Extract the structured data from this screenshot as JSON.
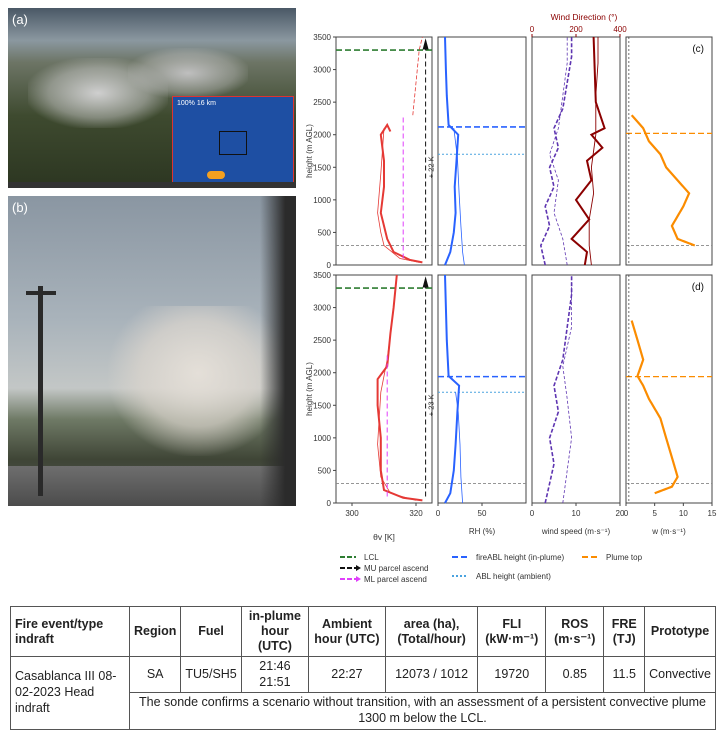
{
  "photos": {
    "a_label": "(a)",
    "b_label": "(b)",
    "c_label": "(c)",
    "d_label": "(d)",
    "inset_text": "100% 16 km"
  },
  "axes": {
    "height_label": "height (m AGL)",
    "theta_label": "θv [K]",
    "rh_label": "RH (%)",
    "ws_label": "wind speed (m·s⁻¹)",
    "wd_label": "Wind Direction (°)",
    "w_label": "w (m·s⁻¹)",
    "c_annotation": "+ 22 K",
    "d_annotation": "+ 23 K"
  },
  "legend": {
    "lcl": "LCL",
    "mu": "MU parcel ascend",
    "ml": "ML parcel ascend",
    "fire_abl": "fireABL height (in-plume)",
    "abl": "ABL height (ambient)",
    "plume_top": "Plume top"
  },
  "colors": {
    "lcl": "#2e7d32",
    "theta": "#e53935",
    "ml": "#e040fb",
    "rh": "#2962ff",
    "abl": "#4aa3df",
    "wind_speed": "#5e35b1",
    "wind_dir": "#8b0000",
    "w": "#fb8c00"
  },
  "chart_data": [
    {
      "type": "line",
      "panel": "c",
      "ylim": [
        0,
        3500
      ],
      "yticks": [
        0,
        500,
        1000,
        1500,
        2000,
        2500,
        3000,
        3500
      ],
      "theta_xlim": [
        295,
        325
      ],
      "theta_xticks": [
        300,
        320
      ],
      "rh_xlim": [
        0,
        100
      ],
      "rh_xticks": [
        0,
        50
      ],
      "ws_xlim": [
        0,
        20
      ],
      "ws_xticks": [
        0,
        10,
        20
      ],
      "wd_xlim": [
        0,
        400
      ],
      "wd_xticks": [
        0,
        200,
        400
      ],
      "w_xlim": [
        0,
        15
      ],
      "w_xticks": [
        0,
        5,
        10,
        15
      ],
      "lcl_height": 3300,
      "fire_abl_height": 2120,
      "abl_height": 1700,
      "plume_top": 2020,
      "surface_line": 300,
      "annotation": "+ 22 K",
      "theta_inplume": [
        [
          322,
          40
        ],
        [
          318,
          80
        ],
        [
          313,
          200
        ],
        [
          311,
          400
        ],
        [
          309,
          800
        ],
        [
          310,
          1200
        ],
        [
          310,
          1600
        ],
        [
          309,
          2000
        ],
        [
          311,
          2150
        ],
        [
          312,
          2050
        ]
      ],
      "theta_ambient": [
        [
          321,
          40
        ],
        [
          315,
          100
        ],
        [
          310,
          300
        ],
        [
          309,
          500
        ],
        [
          308,
          800
        ],
        [
          309,
          1400
        ],
        [
          310,
          2100
        ]
      ],
      "theta_upper": [
        [
          319,
          2300
        ],
        [
          320,
          2800
        ],
        [
          321,
          3300
        ],
        [
          322,
          3500
        ]
      ],
      "mu_parcel_x": 323,
      "ml_parcel_x": 316,
      "rh_inplume": [
        [
          8,
          0
        ],
        [
          14,
          200
        ],
        [
          18,
          500
        ],
        [
          20,
          800
        ],
        [
          19,
          1200
        ],
        [
          21,
          1600
        ],
        [
          23,
          2000
        ],
        [
          12,
          2150
        ],
        [
          10,
          2600
        ],
        [
          9,
          3000
        ],
        [
          8,
          3500
        ]
      ],
      "rh_ambient": [
        [
          30,
          0
        ],
        [
          28,
          200
        ],
        [
          26,
          600
        ],
        [
          24,
          1100
        ],
        [
          22,
          1650
        ],
        [
          18,
          2100
        ]
      ],
      "ws_inplume": [
        [
          3,
          0
        ],
        [
          2,
          300
        ],
        [
          4,
          600
        ],
        [
          3,
          900
        ],
        [
          5,
          1200
        ],
        [
          4,
          1500
        ],
        [
          6,
          1800
        ],
        [
          5,
          2100
        ],
        [
          7,
          2400
        ],
        [
          8,
          2800
        ],
        [
          9,
          3200
        ],
        [
          9,
          3500
        ]
      ],
      "ws_ambient": [
        [
          8,
          0
        ],
        [
          7,
          400
        ],
        [
          5,
          800
        ],
        [
          6,
          1300
        ],
        [
          4,
          1700
        ],
        [
          6,
          2100
        ],
        [
          7,
          2600
        ],
        [
          8,
          3100
        ],
        [
          8,
          3500
        ]
      ],
      "wd_inplume": [
        [
          240,
          0
        ],
        [
          250,
          200
        ],
        [
          180,
          400
        ],
        [
          260,
          700
        ],
        [
          200,
          1000
        ],
        [
          270,
          1300
        ],
        [
          250,
          1600
        ],
        [
          320,
          1800
        ],
        [
          270,
          2000
        ],
        [
          330,
          2100
        ],
        [
          290,
          2500
        ],
        [
          285,
          3000
        ],
        [
          280,
          3500
        ]
      ],
      "wd_ambient": [
        [
          270,
          0
        ],
        [
          260,
          300
        ],
        [
          260,
          700
        ],
        [
          280,
          1100
        ],
        [
          270,
          1500
        ],
        [
          290,
          2000
        ],
        [
          290,
          2600
        ],
        [
          300,
          3100
        ],
        [
          300,
          3500
        ]
      ],
      "w_profile": [
        [
          12,
          300
        ],
        [
          9,
          400
        ],
        [
          8,
          600
        ],
        [
          10,
          900
        ],
        [
          11,
          1100
        ],
        [
          9,
          1300
        ],
        [
          7,
          1500
        ],
        [
          6,
          1700
        ],
        [
          4,
          1900
        ],
        [
          3,
          2100
        ],
        [
          2,
          2200
        ],
        [
          1,
          2300
        ]
      ]
    },
    {
      "type": "line",
      "panel": "d",
      "ylim": [
        0,
        3500
      ],
      "yticks": [
        0,
        500,
        1000,
        1500,
        2000,
        2500,
        3000,
        3500
      ],
      "theta_xlim": [
        295,
        325
      ],
      "theta_xticks": [
        300,
        320
      ],
      "rh_xlim": [
        0,
        100
      ],
      "rh_xticks": [
        0,
        50
      ],
      "ws_xlim": [
        0,
        20
      ],
      "ws_xticks": [
        0,
        10,
        20
      ],
      "w_xlim": [
        0,
        15
      ],
      "w_xticks": [
        0,
        5,
        10,
        15
      ],
      "lcl_height": 3300,
      "fire_abl_height": 1940,
      "abl_height": 1700,
      "plume_top": 1940,
      "surface_line": 300,
      "annotation": "+ 23 K",
      "theta_inplume": [
        [
          322,
          40
        ],
        [
          316,
          80
        ],
        [
          310,
          200
        ],
        [
          309,
          500
        ],
        [
          309,
          1000
        ],
        [
          308,
          1500
        ],
        [
          308,
          1900
        ],
        [
          311,
          2100
        ],
        [
          312,
          2600
        ],
        [
          313,
          3000
        ],
        [
          314,
          3500
        ]
      ],
      "theta_ambient": [
        [
          320,
          40
        ],
        [
          312,
          150
        ],
        [
          309,
          400
        ],
        [
          308,
          900
        ],
        [
          309,
          1700
        ],
        [
          311,
          2200
        ],
        [
          313,
          3000
        ]
      ],
      "mu_parcel_x": 323,
      "ml_parcel_x": 311,
      "rh_inplume": [
        [
          8,
          0
        ],
        [
          14,
          150
        ],
        [
          18,
          500
        ],
        [
          20,
          900
        ],
        [
          22,
          1400
        ],
        [
          24,
          1800
        ],
        [
          12,
          1950
        ],
        [
          10,
          2500
        ],
        [
          9,
          3000
        ],
        [
          8,
          3500
        ]
      ],
      "rh_ambient": [
        [
          28,
          0
        ],
        [
          26,
          400
        ],
        [
          25,
          900
        ],
        [
          23,
          1400
        ],
        [
          20,
          1700
        ]
      ],
      "ws_inplume": [
        [
          3,
          0
        ],
        [
          4,
          300
        ],
        [
          5,
          600
        ],
        [
          4,
          1000
        ],
        [
          6,
          1400
        ],
        [
          5,
          1800
        ],
        [
          7,
          2200
        ],
        [
          8,
          2700
        ],
        [
          9,
          3200
        ],
        [
          9,
          3500
        ]
      ],
      "ws_ambient": [
        [
          7,
          0
        ],
        [
          8,
          500
        ],
        [
          9,
          1000
        ],
        [
          8,
          1600
        ],
        [
          7,
          2100
        ],
        [
          9,
          2700
        ],
        [
          9,
          3500
        ]
      ],
      "w_profile": [
        [
          5,
          150
        ],
        [
          8,
          250
        ],
        [
          9,
          400
        ],
        [
          8,
          700
        ],
        [
          7,
          1000
        ],
        [
          6,
          1300
        ],
        [
          4,
          1600
        ],
        [
          3,
          1800
        ],
        [
          2,
          1950
        ],
        [
          3,
          2200
        ],
        [
          2,
          2500
        ],
        [
          1,
          2800
        ]
      ]
    }
  ],
  "table": {
    "headers": [
      "Fire event/type indraft",
      "Region",
      "Fuel",
      "in-plume hour (UTC)",
      "Ambient hour (UTC)",
      "area (ha), (Total/hour)",
      "FLI (kW·m⁻¹)",
      "ROS (m·s⁻¹)",
      "FRE (TJ)",
      "Prototype"
    ],
    "event": "Casablanca III 08-02-2023 Head indraft",
    "region": "SA",
    "fuel": "TU5/SH5",
    "inplume_hour": "21:46 21:51",
    "ambient_hour": "22:27",
    "area": "12073 / 1012",
    "fli": "19720",
    "ros": "0.85",
    "fre": "11.5",
    "prototype": "Convective",
    "note": "The sonde confirms a scenario without transition, with an assessment of a persistent convective plume 1300 m below the LCL."
  }
}
